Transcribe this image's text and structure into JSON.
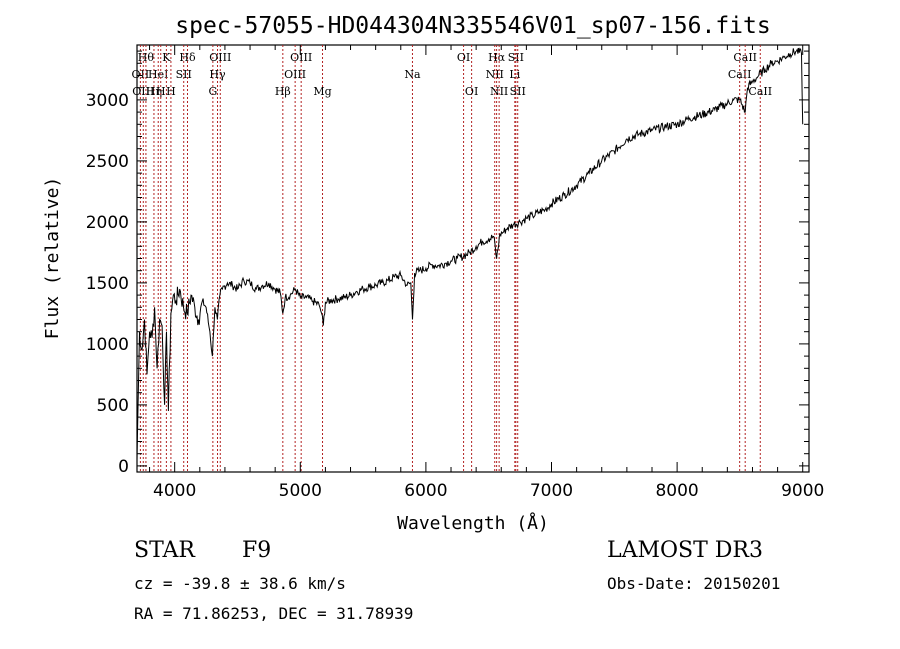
{
  "chart_data": {
    "type": "line",
    "title": "spec-57055-HD044304N335546V01_sp07-156.fits",
    "xlabel": "Wavelength (Å)",
    "ylabel": "Flux (relative)",
    "xlim": [
      3700,
      9050
    ],
    "ylim": [
      -50,
      3450
    ],
    "xticks": [
      4000,
      5000,
      6000,
      7000,
      8000,
      9000
    ],
    "yticks": [
      0,
      500,
      1000,
      1500,
      2000,
      2500,
      3000
    ],
    "grid": false,
    "series": [
      {
        "x": [
          3700,
          3720,
          3740,
          3760,
          3780,
          3800,
          3820,
          3840,
          3860,
          3880,
          3900,
          3920,
          3935,
          3950,
          3970,
          3990,
          4010,
          4040,
          4070,
          4100,
          4130,
          4160,
          4190,
          4220,
          4250,
          4280,
          4300,
          4320,
          4340,
          4360,
          4380,
          4420,
          4460,
          4500,
          4550,
          4600,
          4650,
          4700,
          4750,
          4800,
          4840,
          4861,
          4880,
          4920,
          4960,
          5000,
          5050,
          5100,
          5150,
          5170,
          5183,
          5200,
          5250,
          5300,
          5350,
          5400,
          5450,
          5500,
          5550,
          5600,
          5650,
          5700,
          5750,
          5800,
          5850,
          5880,
          5893,
          5910,
          5950,
          6000,
          6050,
          6100,
          6150,
          6200,
          6250,
          6300,
          6350,
          6400,
          6450,
          6500,
          6540,
          6563,
          6590,
          6620,
          6650,
          6700,
          6750,
          6800,
          6850,
          6900,
          6950,
          7000,
          7100,
          7200,
          7300,
          7400,
          7500,
          7600,
          7700,
          7800,
          7900,
          8000,
          8100,
          8200,
          8300,
          8400,
          8450,
          8500,
          8542,
          8560,
          8600,
          8650,
          8700,
          8750,
          8800,
          8850,
          8900,
          8950,
          8990,
          9000
        ],
        "y": [
          50,
          1100,
          950,
          1200,
          750,
          1100,
          1050,
          1300,
          800,
          1200,
          1150,
          500,
          1100,
          450,
          1250,
          1400,
          1350,
          1450,
          1300,
          1250,
          1400,
          1300,
          1200,
          1350,
          1300,
          1100,
          900,
          1300,
          1200,
          1400,
          1450,
          1500,
          1480,
          1450,
          1520,
          1500,
          1450,
          1480,
          1500,
          1450,
          1420,
          1250,
          1380,
          1400,
          1450,
          1380,
          1380,
          1350,
          1320,
          1250,
          1150,
          1340,
          1360,
          1370,
          1380,
          1400,
          1430,
          1450,
          1470,
          1480,
          1500,
          1520,
          1550,
          1560,
          1480,
          1500,
          1200,
          1580,
          1600,
          1620,
          1650,
          1640,
          1660,
          1680,
          1700,
          1720,
          1750,
          1800,
          1840,
          1860,
          1880,
          1700,
          1900,
          1920,
          1950,
          1980,
          2000,
          2030,
          2050,
          2080,
          2100,
          2150,
          2220,
          2300,
          2400,
          2500,
          2580,
          2680,
          2720,
          2750,
          2780,
          2800,
          2850,
          2880,
          2920,
          2970,
          3000,
          3000,
          2900,
          3100,
          3150,
          3200,
          3250,
          3300,
          3320,
          3350,
          3380,
          3400,
          3380,
          2800
        ]
      }
    ],
    "line_markers": [
      {
        "x": 3727,
        "label": "OII",
        "row": 2
      },
      {
        "x": 3750,
        "label": "OIII",
        "row": 3
      },
      {
        "x": 3771,
        "label": "Hθ",
        "row": 1
      },
      {
        "x": 3835,
        "label": "Hη",
        "row": 3
      },
      {
        "x": 3869,
        "label": "HeI",
        "row": 2
      },
      {
        "x": 3889,
        "label": "H",
        "row": 3
      },
      {
        "x": 3934,
        "label": "K",
        "row": 1
      },
      {
        "x": 3970,
        "label": "H",
        "row": 3
      },
      {
        "x": 4072,
        "label": "SII",
        "row": 2
      },
      {
        "x": 4102,
        "label": "Hδ",
        "row": 1
      },
      {
        "x": 4304,
        "label": "G",
        "row": 3
      },
      {
        "x": 4341,
        "label": "Hγ",
        "row": 2
      },
      {
        "x": 4363,
        "label": "OIII",
        "row": 1
      },
      {
        "x": 4861,
        "label": "Hβ",
        "row": 3
      },
      {
        "x": 4959,
        "label": "OIII",
        "row": 2
      },
      {
        "x": 5007,
        "label": "OIII",
        "row": 1
      },
      {
        "x": 5177,
        "label": "Mg",
        "row": 3
      },
      {
        "x": 5893,
        "label": "Na",
        "row": 2
      },
      {
        "x": 6300,
        "label": "OI",
        "row": 1
      },
      {
        "x": 6364,
        "label": "OI",
        "row": 3
      },
      {
        "x": 6548,
        "label": "NII",
        "row": 2
      },
      {
        "x": 6563,
        "label": "Hα",
        "row": 1
      },
      {
        "x": 6583,
        "label": "NII",
        "row": 3
      },
      {
        "x": 6708,
        "label": "Li",
        "row": 2
      },
      {
        "x": 6716,
        "label": "SII",
        "row": 1
      },
      {
        "x": 6731,
        "label": "SII",
        "row": 3
      },
      {
        "x": 8498,
        "label": "CaII",
        "row": 2
      },
      {
        "x": 8542,
        "label": "CaII",
        "row": 1
      },
      {
        "x": 8662,
        "label": "CaII",
        "row": 3
      }
    ]
  },
  "info": {
    "object_class": "STAR",
    "subclass": "F9",
    "survey": "LAMOST DR3",
    "redshift": "cz = -39.8 ± 38.6 km/s",
    "obs_date": "Obs-Date: 20150201",
    "coords": "RA =  71.86253, DEC =  31.78939"
  }
}
